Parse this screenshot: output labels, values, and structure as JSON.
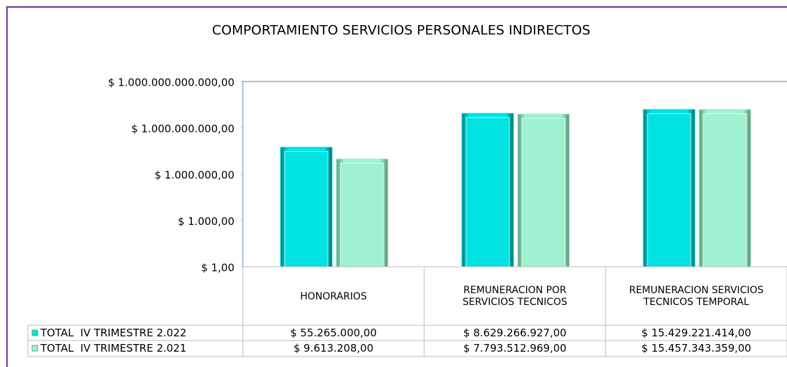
{
  "chart_data": {
    "type": "bar",
    "title": "COMPORTAMIENTO SERVICIOS PERSONALES INDIRECTOS",
    "categories": [
      "HONORARIOS",
      "REMUNERACION POR SERVICIOS TECNICOS",
      "REMUNERACION SERVICIOS TECNICOS TEMPORAL"
    ],
    "series": [
      {
        "name": "TOTAL  IV TRIMESTRE 2.022",
        "color": "#00e3e3",
        "values": [
          55265000,
          8629266927,
          15429221414
        ],
        "value_labels": [
          "$ 55.265.000,00",
          "$ 8.629.266.927,00",
          "$ 15.429.221.414,00"
        ]
      },
      {
        "name": "TOTAL  IV TRIMESTRE 2.021",
        "color": "#9ff2cf",
        "values": [
          9613208,
          7793512969,
          15457343359
        ],
        "value_labels": [
          "$ 9.613.208,00",
          "$ 7.793.512.969,00",
          "$ 15.457.343.359,00"
        ]
      }
    ],
    "log_scale": true,
    "ylim": [
      1,
      1000000000000
    ],
    "yticks": [
      {
        "value": 1,
        "label": "$ 1,00"
      },
      {
        "value": 1000,
        "label": "$ 1.000,00"
      },
      {
        "value": 1000000,
        "label": "$ 1.000.000,00"
      },
      {
        "value": 1000000000,
        "label": "$ 1.000.000.000,00"
      },
      {
        "value": 1000000000000,
        "label": "$ 1.000.000.000.000,00"
      }
    ],
    "grid": false
  }
}
